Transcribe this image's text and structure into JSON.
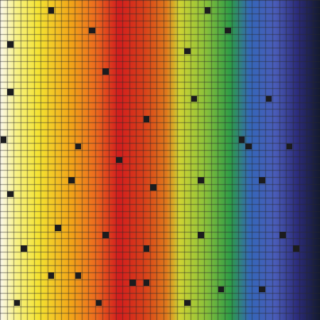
{
  "mosaic": {
    "columns": 47,
    "rows": 47,
    "grout_color": "#2a2a2a",
    "dark_tile_color": "#1c1c1e",
    "gradient_stops": [
      {
        "at": 0.0,
        "color": "#fbf7ec"
      },
      {
        "at": 0.05,
        "color": "#f8f286"
      },
      {
        "at": 0.12,
        "color": "#f4e332"
      },
      {
        "at": 0.22,
        "color": "#f2a619"
      },
      {
        "at": 0.3,
        "color": "#ec6a1f"
      },
      {
        "at": 0.37,
        "color": "#d31e1e"
      },
      {
        "at": 0.45,
        "color": "#d8401a"
      },
      {
        "at": 0.52,
        "color": "#e07a1c"
      },
      {
        "at": 0.56,
        "color": "#cfd333"
      },
      {
        "at": 0.64,
        "color": "#8dc23a"
      },
      {
        "at": 0.72,
        "color": "#2e9c47"
      },
      {
        "at": 0.78,
        "color": "#3567b8"
      },
      {
        "at": 0.86,
        "color": "#4a5cb8"
      },
      {
        "at": 0.93,
        "color": "#2c2c7a"
      },
      {
        "at": 1.0,
        "color": "#141a2e"
      }
    ],
    "dark_tiles": [
      [
        7,
        1
      ],
      [
        30,
        1
      ],
      [
        13,
        4
      ],
      [
        33,
        4
      ],
      [
        1,
        6
      ],
      [
        27,
        7
      ],
      [
        15,
        10
      ],
      [
        1,
        13
      ],
      [
        28,
        14
      ],
      [
        39,
        14
      ],
      [
        21,
        17
      ],
      [
        0,
        20
      ],
      [
        35,
        20
      ],
      [
        11,
        21
      ],
      [
        36,
        21
      ],
      [
        42,
        21
      ],
      [
        17,
        23
      ],
      [
        10,
        26
      ],
      [
        29,
        26
      ],
      [
        38,
        26
      ],
      [
        22,
        27
      ],
      [
        1,
        28
      ],
      [
        8,
        33
      ],
      [
        15,
        34
      ],
      [
        29,
        34
      ],
      [
        41,
        34
      ],
      [
        3,
        36
      ],
      [
        21,
        36
      ],
      [
        43,
        36
      ],
      [
        7,
        40
      ],
      [
        11,
        40
      ],
      [
        19,
        41
      ],
      [
        21,
        41
      ],
      [
        32,
        42
      ],
      [
        38,
        42
      ],
      [
        2,
        44
      ],
      [
        14,
        44
      ],
      [
        27,
        44
      ]
    ]
  }
}
